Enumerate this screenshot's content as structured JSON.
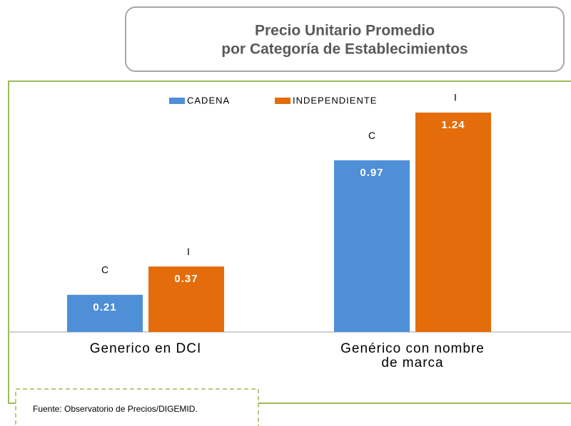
{
  "chart_data": {
    "type": "bar",
    "title": "Precio Unitario Promedio",
    "subtitle": "por Categoría de Establecimientos",
    "categories": [
      "Generico  en DCI",
      "Genérico con nombre de marca"
    ],
    "series": [
      {
        "name": "CADENA",
        "color": "#4f8fd8",
        "values": [
          0.21,
          0.97
        ],
        "marker_label": "C"
      },
      {
        "name": "INDEPENDIENTE",
        "color": "#e46c0a",
        "values": [
          0.37,
          1.24
        ],
        "marker_label": "I"
      }
    ],
    "source": "Fuente: Observatorio de Precios/DIGEMID."
  }
}
